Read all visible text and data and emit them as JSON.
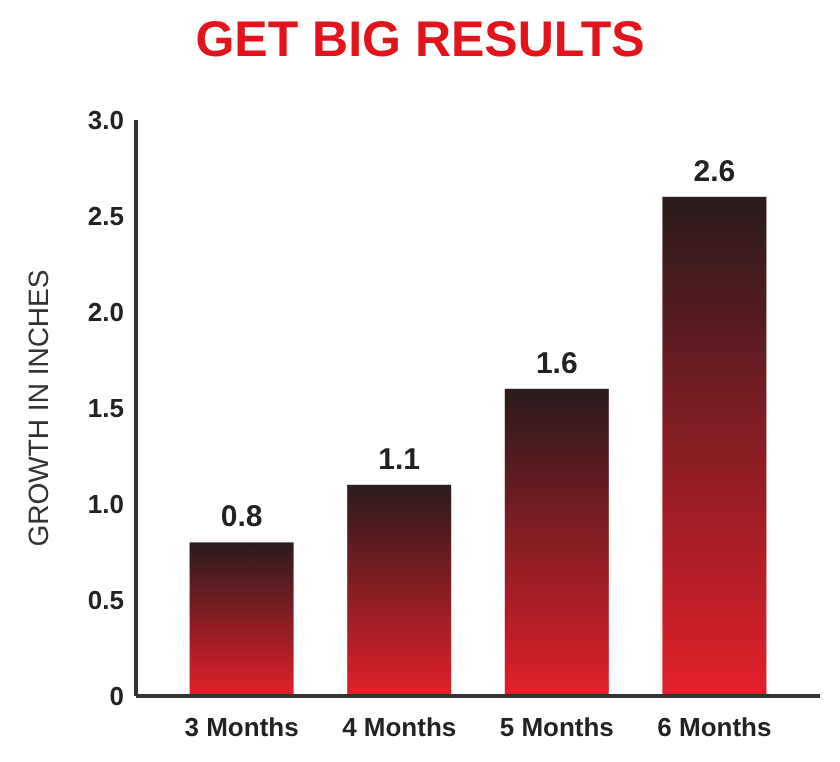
{
  "chart_data": {
    "type": "bar",
    "title": "GET BIG RESULTS",
    "ylabel": "GROWTH IN INCHES",
    "categories": [
      "3 Months",
      "4 Months",
      "5 Months",
      "6 Months"
    ],
    "values": [
      0.8,
      1.1,
      1.6,
      2.6
    ],
    "color": "#e3202a",
    "data_labels": true,
    "ylim": [
      0,
      3
    ],
    "yticks": [
      0,
      0.5,
      {
        "value": 1,
        "label": "1.0"
      },
      1.5,
      {
        "value": 2,
        "label": "2.0"
      },
      2.5,
      {
        "value": 3,
        "label": "3.0"
      }
    ],
    "grid": false
  }
}
